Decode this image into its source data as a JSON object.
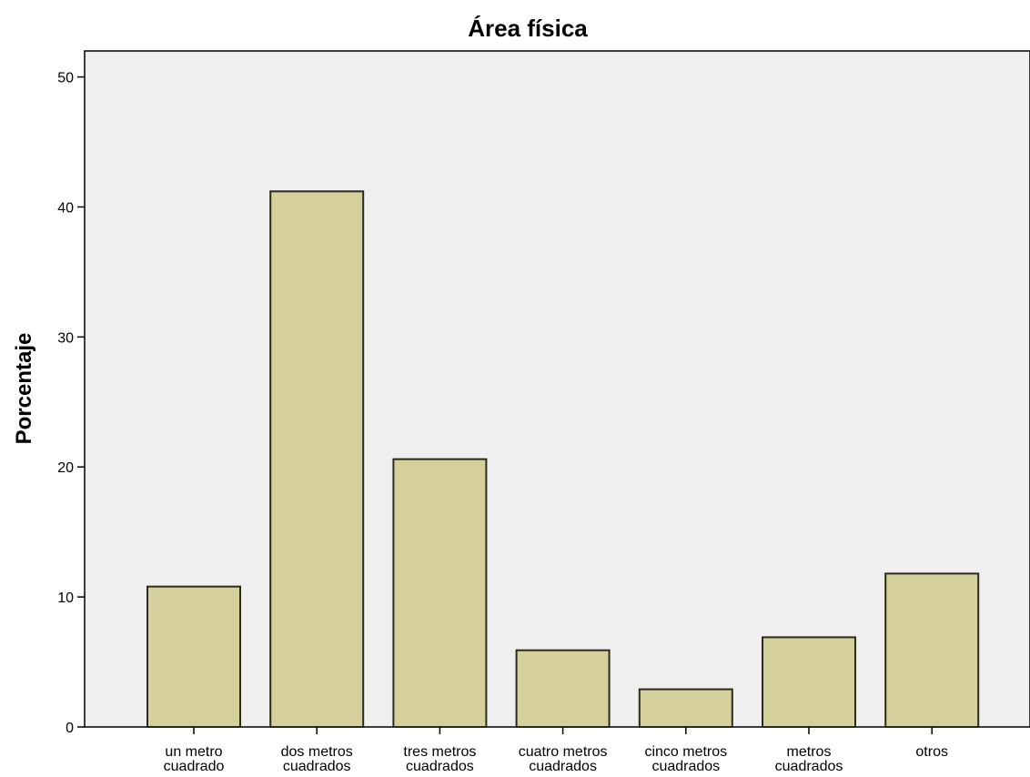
{
  "chart_data": {
    "type": "bar",
    "title": "Área física",
    "ylabel": "Porcentaje",
    "xlabel": "",
    "ylim": [
      0,
      52
    ],
    "yticks": [
      0,
      10,
      20,
      30,
      40,
      50
    ],
    "categories": [
      [
        "un metro",
        "cuadrado"
      ],
      [
        "dos metros",
        "cuadrados"
      ],
      [
        "tres metros",
        "cuadrados"
      ],
      [
        "cuatro metros",
        "cuadrados"
      ],
      [
        "cinco metros",
        "cuadrados"
      ],
      [
        "metros",
        "cuadrados"
      ],
      [
        "otros"
      ]
    ],
    "values": [
      10.8,
      41.2,
      20.6,
      5.9,
      2.9,
      6.9,
      11.8
    ],
    "grid": false,
    "colors": {
      "bar_fill": "#d4cf9b",
      "bar_stroke": "#2b2b1a",
      "plot_background": "#efefef",
      "axis": "#000000"
    }
  }
}
